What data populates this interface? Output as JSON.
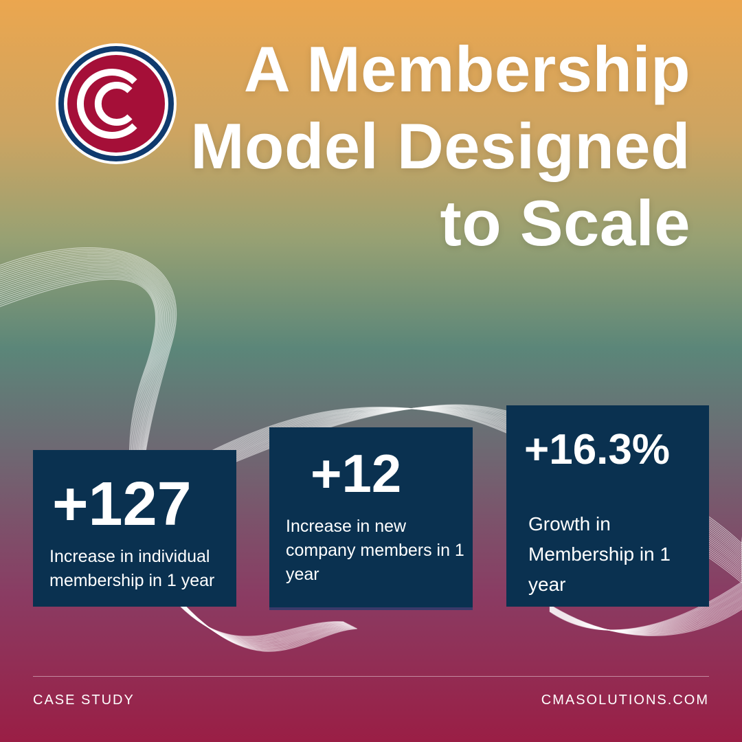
{
  "brand": {
    "logo_icon": "cma-logo-icon",
    "colors": {
      "logo_red": "#a50f38",
      "logo_navy": "#0f3a6e",
      "card_navy": "#0a3150",
      "gradient_top": "#eba64f",
      "gradient_bottom": "#9a1e45"
    }
  },
  "title": "A Membership Model Designed to Scale",
  "stats": [
    {
      "value": "+127",
      "description": "Increase in individual membership in 1 year"
    },
    {
      "value": "+12",
      "description": "Increase in new company members in 1 year"
    },
    {
      "value": "+16.3%",
      "description": "Growth in Membership in 1 year"
    }
  ],
  "footer": {
    "label": "CASE STUDY",
    "website": "CMASOLUTIONS.COM"
  }
}
